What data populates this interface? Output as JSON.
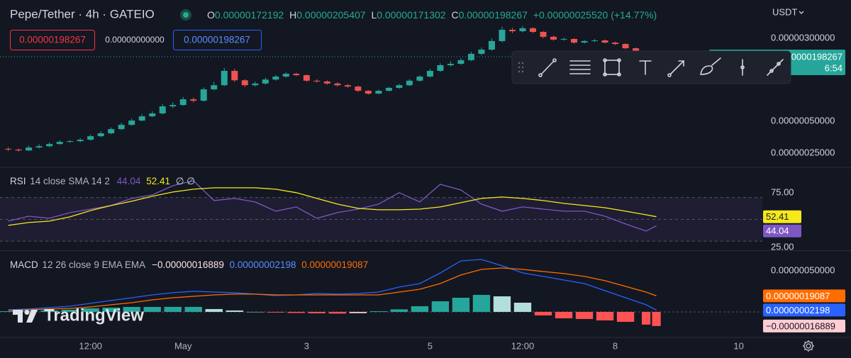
{
  "chart_data": [
    {
      "type": "candlestick",
      "title": "Pepe/Tether · 4h · GATEIO",
      "legend": {
        "o_label": "O",
        "o": "0.00000172192",
        "h_label": "H",
        "h": "0.00000205407",
        "l_label": "L",
        "l": "0.00000171302",
        "c_label": "C",
        "c": "0.00000198267",
        "change": "+0.00000025520 (+14.77%)"
      },
      "ohlc": [
        [
          2.7e-07,
          2.8e-07,
          2.58e-07,
          2.66e-07
        ],
        [
          2.66e-07,
          2.72e-07,
          2.55e-07,
          2.61e-07
        ],
        [
          2.61e-07,
          2.9e-07,
          2.58e-07,
          2.78e-07
        ],
        [
          2.78e-07,
          2.98e-07,
          2.72e-07,
          2.86e-07
        ],
        [
          2.86e-07,
          3.1e-07,
          2.8e-07,
          3e-07
        ],
        [
          3e-07,
          3.25e-07,
          2.95e-07,
          3.14e-07
        ],
        [
          3.14e-07,
          3.28e-07,
          3.08e-07,
          3.19e-07
        ],
        [
          3.19e-07,
          3.4e-07,
          3.12e-07,
          3.29e-07
        ],
        [
          3.29e-07,
          3.68e-07,
          3.22e-07,
          3.55e-07
        ],
        [
          3.55e-07,
          3.95e-07,
          3.48e-07,
          3.78e-07
        ],
        [
          3.78e-07,
          4.3e-07,
          3.7e-07,
          4.14e-07
        ],
        [
          4.14e-07,
          4.75e-07,
          4.05e-07,
          4.54e-07
        ],
        [
          4.54e-07,
          5.2e-07,
          4.45e-07,
          4.98e-07
        ],
        [
          4.98e-07,
          5.7e-07,
          4.9e-07,
          5.46e-07
        ],
        [
          5.46e-07,
          6.1e-07,
          5.35e-07,
          5.81e-07
        ],
        [
          5.81e-07,
          7.1e-07,
          5.7e-07,
          6.77e-07
        ],
        [
          6.77e-07,
          7.4e-07,
          6.5e-07,
          6.98e-07
        ],
        [
          6.98e-07,
          8.3e-07,
          6.85e-07,
          7.89e-07
        ],
        [
          7.89e-07,
          8.2e-07,
          7.4e-07,
          7.65e-07
        ],
        [
          7.65e-07,
          1.02e-06,
          7.5e-07,
          9.78e-07
        ],
        [
          9.78e-07,
          1.15e-06,
          9.6e-07,
          1.07e-06
        ],
        [
          1.07e-06,
          1.55e-06,
          1.05e-06,
          1.46e-06
        ],
        [
          1.46e-06,
          1.52e-06,
          1.15e-06,
          1.19e-06
        ],
        [
          1.19e-06,
          1.22e-06,
          1.03e-06,
          1.07e-06
        ],
        [
          1.07e-06,
          1.16e-06,
          1.04e-06,
          1.11e-06
        ],
        [
          1.11e-06,
          1.26e-06,
          1.08e-06,
          1.21e-06
        ],
        [
          1.21e-06,
          1.34e-06,
          1.18e-06,
          1.29e-06
        ],
        [
          1.29e-06,
          1.42e-06,
          1.26e-06,
          1.37e-06
        ],
        [
          1.37e-06,
          1.4e-06,
          1.3e-06,
          1.33e-06
        ],
        [
          1.33e-06,
          1.35e-06,
          1.15e-06,
          1.18e-06
        ],
        [
          1.18e-06,
          1.22e-06,
          1.13e-06,
          1.16e-06
        ],
        [
          1.16e-06,
          1.19e-06,
          1.08e-06,
          1.11e-06
        ],
        [
          1.11e-06,
          1.14e-06,
          1.04e-06,
          1.07e-06
        ],
        [
          1.07e-06,
          1.1e-06,
          1.01e-06,
          1.04e-06
        ],
        [
          1.04e-06,
          1.06e-06,
          9.2e-07,
          9.49e-07
        ],
        [
          9.49e-07,
          9.6e-07,
          8.7e-07,
          8.92e-07
        ],
        [
          8.92e-07,
          9.7e-07,
          8.8e-07,
          9.49e-07
        ],
        [
          9.49e-07,
          1.03e-06,
          9.3e-07,
          1.01e-06
        ],
        [
          1.01e-06,
          1.1e-06,
          9.9e-07,
          1.07e-06
        ],
        [
          1.07e-06,
          1.22e-06,
          1.05e-06,
          1.18e-06
        ],
        [
          1.18e-06,
          1.33e-06,
          1.15e-06,
          1.29e-06
        ],
        [
          1.29e-06,
          1.52e-06,
          1.26e-06,
          1.46e-06
        ],
        [
          1.46e-06,
          1.72e-06,
          1.42e-06,
          1.65e-06
        ],
        [
          1.65e-06,
          1.8e-06,
          1.6e-06,
          1.7e-06
        ],
        [
          1.7e-06,
          1.92e-06,
          1.66e-06,
          1.84e-06
        ],
        [
          1.84e-06,
          2.2e-06,
          1.8e-06,
          2.11e-06
        ],
        [
          2.11e-06,
          2.42e-06,
          2.05e-06,
          2.31e-06
        ],
        [
          2.31e-06,
          2.95e-06,
          2.25e-06,
          2.78e-06
        ],
        [
          2.78e-06,
          3.8e-06,
          2.7e-06,
          3.55e-06
        ],
        [
          3.55e-06,
          3.7e-06,
          3.3e-06,
          3.44e-06
        ],
        [
          3.44e-06,
          3.85e-06,
          3.35e-06,
          3.67e-06
        ],
        [
          3.67e-06,
          3.75e-06,
          3.3e-06,
          3.39e-06
        ],
        [
          3.39e-06,
          3.45e-06,
          2.95e-06,
          3.05e-06
        ],
        [
          3.05e-06,
          3.12e-06,
          2.8e-06,
          2.87e-06
        ],
        [
          2.87e-06,
          3e-06,
          2.8e-06,
          2.91e-06
        ],
        [
          2.91e-06,
          2.96e-06,
          2.62e-06,
          2.69e-06
        ],
        [
          2.69e-06,
          2.85e-06,
          2.64e-06,
          2.78e-06
        ],
        [
          2.78e-06,
          2.9e-06,
          2.72e-06,
          2.82e-06
        ],
        [
          2.82e-06,
          2.88e-06,
          2.64e-06,
          2.69e-06
        ],
        [
          2.69e-06,
          2.74e-06,
          2.55e-06,
          2.61e-06
        ],
        [
          2.61e-06,
          2.65e-06,
          2.33e-06,
          2.38e-06
        ],
        [
          2.38e-06,
          2.42e-06,
          2e-06,
          2.05e-06
        ],
        [
          2.05e-06,
          2.1e-06,
          1.7e-06,
          1.72192e-06
        ],
        [
          1.72192e-06,
          2.05407e-06,
          1.71302e-06,
          1.98267e-06
        ]
      ],
      "colors": {
        "up": "#26a69a",
        "down": "#ef5350"
      },
      "log": true,
      "grid": false,
      "ylim": [
        1.84e-07,
        6.76e-06
      ],
      "yticks": [
        {
          "value": 3e-06,
          "label": "0.00000300000"
        },
        {
          "value": 5e-07,
          "label": "0.00000050000"
        },
        {
          "value": 2.5e-07,
          "label": "0.00000025000"
        }
      ],
      "xlim": [
        -0.8,
        73.3
      ],
      "xticks": [
        {
          "value": 8,
          "label": "12:00"
        },
        {
          "value": 17,
          "label": "May"
        },
        {
          "value": 29,
          "label": "3"
        },
        {
          "value": 41,
          "label": "5"
        },
        {
          "value": 50,
          "label": "12:00"
        },
        {
          "value": 59,
          "label": "8"
        },
        {
          "value": 71,
          "label": "10"
        }
      ],
      "last_price_label": "0.00000198267",
      "countdown": "6:54"
    },
    {
      "type": "line",
      "title": "RSI",
      "subtitle": "14 close SMA 14 2",
      "extra": "∅ ∅",
      "x": [
        0,
        2,
        4,
        6,
        8,
        10,
        12,
        14,
        16,
        18,
        20,
        22,
        24,
        26,
        28,
        30,
        32,
        34,
        36,
        38,
        40,
        42,
        44,
        46,
        48,
        50,
        52,
        54,
        56,
        58,
        60,
        62,
        63
      ],
      "series": [
        {
          "color": "#7e57c2",
          "values": [
            48.4,
            52.9,
            51.0,
            56.2,
            59.4,
            62.7,
            69.2,
            72.4,
            80.8,
            85.4,
            67.2,
            69.2,
            65.9,
            57.5,
            61.4,
            51.0,
            56.2,
            59.4,
            64.0,
            74.4,
            65.9,
            82.1,
            76.9,
            64.0,
            57.5,
            61.4,
            59.4,
            57.5,
            57.5,
            52.9,
            45.8,
            39.3,
            44.04
          ]
        },
        {
          "color": "#f5e81c",
          "values": [
            44.5,
            47.1,
            48.4,
            52.3,
            58.1,
            62.7,
            66.6,
            71.1,
            75.0,
            77.6,
            78.9,
            78.9,
            78.9,
            77.6,
            74.4,
            69.2,
            64.0,
            60.1,
            58.8,
            58.8,
            59.4,
            61.4,
            65.3,
            69.2,
            70.5,
            69.2,
            67.2,
            64.6,
            62.7,
            60.7,
            57.5,
            54.2,
            52.41
          ]
        }
      ],
      "bands": [
        70,
        50,
        30
      ],
      "ylim": [
        22.4,
        97
      ],
      "yticks": [
        {
          "value": 75,
          "label": "75.00"
        },
        {
          "value": 25,
          "label": "25.00"
        }
      ]
    },
    {
      "type": "macd",
      "title": "MACD",
      "subtitle": "12 26 close 9 EMA EMA",
      "x": [
        0,
        2,
        4,
        6,
        8,
        10,
        12,
        14,
        16,
        18,
        20,
        22,
        24,
        26,
        28,
        30,
        32,
        34,
        36,
        38,
        40,
        42,
        44,
        46,
        48,
        50,
        52,
        54,
        56,
        58,
        60,
        62,
        63
      ],
      "histogram": {
        "colors": [
          "#26a69a",
          "#b2dfdb",
          "#ffcdd2",
          "#ff5252"
        ],
        "value_label": "−0.00000016889",
        "values": [
          8e-09,
          9e-09,
          1.7e-08,
          2.6e-08,
          4.3e-08,
          5.1e-08,
          5.9e-08,
          5.9e-08,
          6e-08,
          6e-08,
          3.4e-08,
          1.7e-08,
          0,
          -8e-09,
          -1.3e-08,
          -1.7e-08,
          -2e-08,
          -1.5e-08,
          8e-09,
          3e-08,
          6.8e-08,
          1.27e-07,
          1.69e-07,
          2.03e-07,
          1.86e-07,
          1.1e-07,
          -4.2e-08,
          -7.7e-08,
          -8.5e-08,
          -1.02e-07,
          -1.19e-07,
          -1.52e-07,
          -1.6889e-07
        ]
      },
      "series": [
        {
          "color": "#2962ff",
          "value_label": "0.00000002198",
          "values": [
            2.5e-08,
            3.4e-08,
            5.1e-08,
            6.8e-08,
            1.02e-07,
            1.36e-07,
            1.69e-07,
            2.03e-07,
            2.29e-07,
            2.46e-07,
            2.37e-07,
            2.29e-07,
            2.12e-07,
            1.95e-07,
            2.03e-07,
            2.2e-07,
            2.12e-07,
            2.2e-07,
            2.37e-07,
            2.97e-07,
            3.39e-07,
            4.66e-07,
            6.1e-07,
            6.27e-07,
            5.51e-07,
            4.66e-07,
            4.24e-07,
            3.81e-07,
            3.39e-07,
            2.54e-07,
            1.69e-07,
            8.5e-08,
            2.198e-08
          ]
        },
        {
          "color": "#ff6d00",
          "value_label": "0.00000019087",
          "values": [
            1.7e-08,
            2.5e-08,
            3.4e-08,
            4.2e-08,
            5.9e-08,
            8.5e-08,
            1.1e-07,
            1.44e-07,
            1.69e-07,
            1.86e-07,
            2.03e-07,
            2.12e-07,
            2.12e-07,
            2.03e-07,
            2.03e-07,
            2.03e-07,
            2.03e-07,
            2.03e-07,
            2.03e-07,
            2.37e-07,
            2.71e-07,
            3.39e-07,
            4.41e-07,
            5.08e-07,
            5.25e-07,
            5.08e-07,
            4.83e-07,
            4.58e-07,
            4.24e-07,
            3.73e-07,
            3.05e-07,
            2.37e-07,
            1.9087e-07
          ]
        }
      ],
      "ylim": [
        -2.97e-07,
        7.2e-07
      ],
      "yticks": [
        {
          "value": 5e-07,
          "label": "0.00000050000"
        }
      ]
    }
  ],
  "order_panel": {
    "sell": "0.00000198267",
    "spread": "0.00000000000",
    "buy": "0.00000198267"
  },
  "currency": "USDT",
  "watermark": "TradingView"
}
